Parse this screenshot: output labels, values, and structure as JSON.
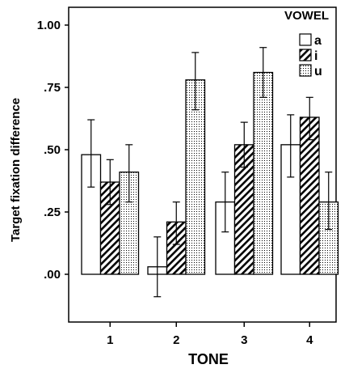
{
  "chart_data": {
    "type": "bar",
    "xlabel": "TONE",
    "ylabel": "Target fixation difference",
    "categories": [
      "1",
      "2",
      "3",
      "4"
    ],
    "ylim": [
      -0.2,
      1.07
    ],
    "yticks": [
      0.0,
      0.25,
      0.5,
      0.75,
      1.0
    ],
    "ytick_labels": [
      ".00",
      ".25",
      ".50",
      ".75",
      "1.00"
    ],
    "legend": {
      "title": "VOWEL",
      "placement": "top-right"
    },
    "series": [
      {
        "name": "a",
        "pattern": "open",
        "values": [
          0.48,
          0.03,
          0.29,
          0.52
        ],
        "error_low": [
          0.35,
          -0.09,
          0.17,
          0.39
        ],
        "error_high": [
          0.62,
          0.15,
          0.41,
          0.64
        ]
      },
      {
        "name": "i",
        "pattern": "diagonal-hatch",
        "values": [
          0.37,
          0.21,
          0.52,
          0.63
        ],
        "error_low": [
          0.28,
          0.12,
          0.43,
          0.54
        ],
        "error_high": [
          0.46,
          0.29,
          0.61,
          0.71
        ]
      },
      {
        "name": "u",
        "pattern": "dotted",
        "values": [
          0.41,
          0.78,
          0.81,
          0.29
        ],
        "error_low": [
          0.29,
          0.66,
          0.71,
          0.18
        ],
        "error_high": [
          0.52,
          0.89,
          0.91,
          0.41
        ]
      }
    ],
    "colors": {
      "bar_stroke": "#000000",
      "bar_fill": "#ffffff",
      "background": "#ffffff"
    }
  }
}
